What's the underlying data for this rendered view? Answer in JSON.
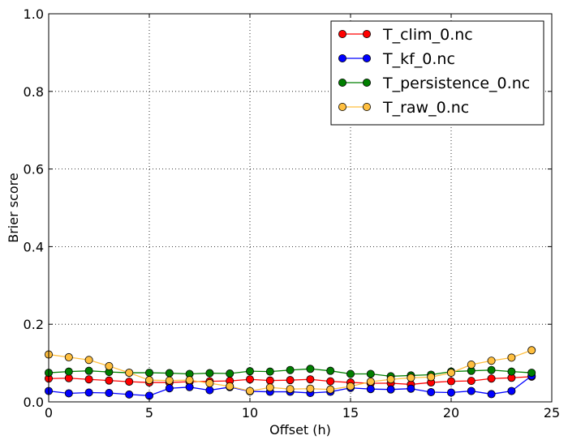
{
  "chart_data": {
    "type": "line",
    "title": "",
    "xlabel": "Offset (h)",
    "ylabel": "Brier score",
    "xlim": [
      0,
      25
    ],
    "ylim": [
      0.0,
      1.0
    ],
    "xticks": [
      "0",
      "5",
      "10",
      "15",
      "20",
      "25"
    ],
    "yticks": [
      "0.0",
      "0.2",
      "0.4",
      "0.6",
      "0.8",
      "1.0"
    ],
    "grid": true,
    "legend_position": "top-right",
    "x": [
      0,
      1,
      2,
      3,
      4,
      5,
      6,
      7,
      8,
      9,
      10,
      11,
      12,
      13,
      14,
      15,
      16,
      17,
      18,
      19,
      20,
      21,
      22,
      23,
      24
    ],
    "series": [
      {
        "name": "T_clim_0.nc",
        "color": "#ff0000",
        "values": [
          0.06,
          0.061,
          0.058,
          0.055,
          0.052,
          0.05,
          0.05,
          0.052,
          0.053,
          0.054,
          0.058,
          0.055,
          0.056,
          0.058,
          0.053,
          0.05,
          0.048,
          0.048,
          0.045,
          0.05,
          0.053,
          0.054,
          0.06,
          0.062,
          0.065
        ]
      },
      {
        "name": "T_kf_0.nc",
        "color": "#0000ff",
        "values": [
          0.028,
          0.022,
          0.024,
          0.023,
          0.019,
          0.016,
          0.035,
          0.038,
          0.03,
          0.038,
          0.027,
          0.026,
          0.026,
          0.023,
          0.026,
          0.036,
          0.033,
          0.032,
          0.034,
          0.025,
          0.024,
          0.028,
          0.02,
          0.028,
          0.067
        ]
      },
      {
        "name": "T_persistence_0.nc",
        "color": "#007f00",
        "values": [
          0.075,
          0.078,
          0.08,
          0.077,
          0.075,
          0.075,
          0.074,
          0.072,
          0.074,
          0.073,
          0.079,
          0.078,
          0.082,
          0.085,
          0.08,
          0.072,
          0.072,
          0.066,
          0.068,
          0.07,
          0.078,
          0.08,
          0.082,
          0.078,
          0.075
        ]
      },
      {
        "name": "T_raw_0.nc",
        "color": "#ffbf3f",
        "values": [
          0.122,
          0.115,
          0.108,
          0.092,
          0.075,
          0.056,
          0.055,
          0.056,
          0.048,
          0.04,
          0.028,
          0.037,
          0.033,
          0.034,
          0.032,
          0.04,
          0.052,
          0.058,
          0.062,
          0.064,
          0.075,
          0.096,
          0.106,
          0.114,
          0.133
        ]
      }
    ]
  }
}
